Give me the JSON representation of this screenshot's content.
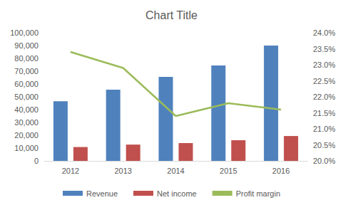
{
  "chart_data": {
    "type": "bar",
    "title": "Chart Title",
    "categories": [
      "2012",
      "2013",
      "2014",
      "2015",
      "2016"
    ],
    "series": [
      {
        "name": "Revenue",
        "color": "#4f81bd",
        "values": [
          46500,
          55500,
          65500,
          74500,
          90000
        ]
      },
      {
        "name": "Net income",
        "color": "#c0504d",
        "values": [
          10800,
          12700,
          13900,
          16100,
          19400
        ]
      },
      {
        "name": "Profit margin",
        "color": "#9bbb59",
        "type": "line",
        "axis": "y2",
        "values": [
          23.4,
          22.9,
          21.4,
          21.8,
          21.6
        ]
      }
    ],
    "ylim": [
      0,
      100000
    ],
    "yticks": [
      0,
      {
        "value": 10000,
        "label": "10,000"
      },
      {
        "value": 20000,
        "label": "20,000"
      },
      {
        "value": 30000,
        "label": "30,000"
      },
      {
        "value": 40000,
        "label": "40,000"
      },
      {
        "value": 50000,
        "label": "50,000"
      },
      {
        "value": 60000,
        "label": "60,000"
      },
      {
        "value": 70000,
        "label": "70,000"
      },
      {
        "value": 80000,
        "label": "80,000"
      },
      {
        "value": 90000,
        "label": "90,000"
      },
      {
        "value": 100000,
        "label": "100,000"
      }
    ],
    "y2lim": [
      20,
      24
    ],
    "y2ticks": [
      {
        "value": 20,
        "label": "20.0%"
      },
      {
        "value": 20.5,
        "label": "20.5%"
      },
      {
        "value": 21,
        "label": "21.0%"
      },
      {
        "value": 21.5,
        "label": "21.5%"
      },
      {
        "value": 22,
        "label": "22.0%"
      },
      {
        "value": 22.5,
        "label": "22.5%"
      },
      {
        "value": 23,
        "label": "23.0%"
      },
      {
        "value": 23.5,
        "label": "23.5%"
      },
      {
        "value": 24,
        "label": "24.0%"
      }
    ],
    "grid": false,
    "legend": "bottom"
  }
}
